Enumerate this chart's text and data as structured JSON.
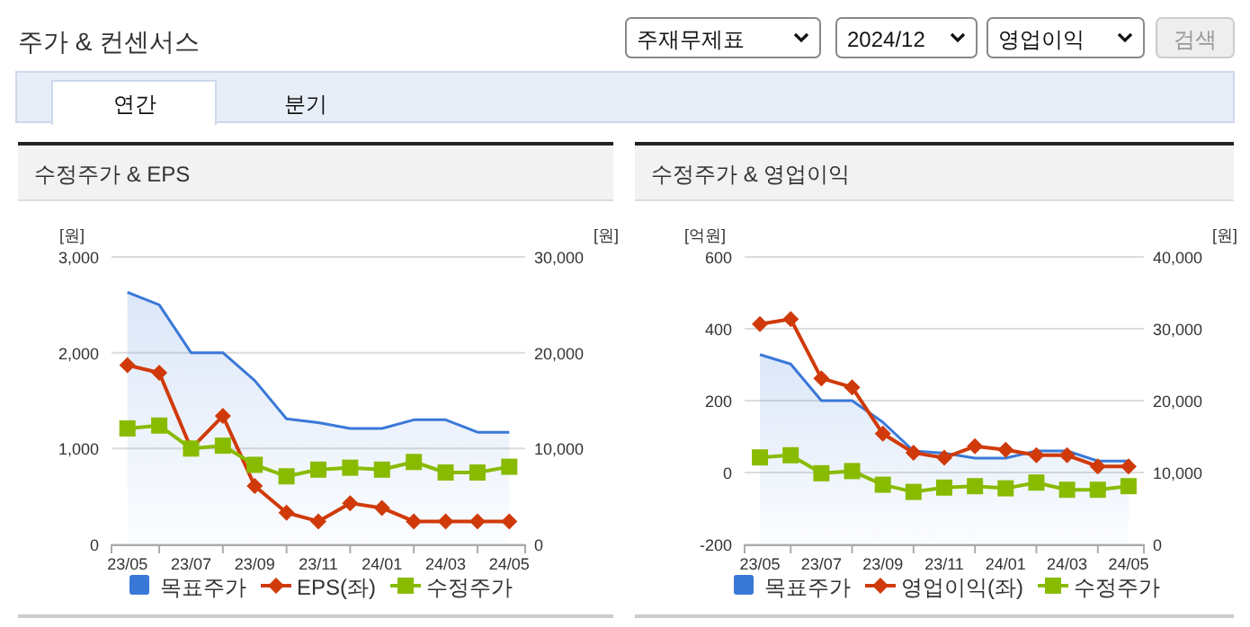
{
  "chart_data": [
    {
      "type": "line",
      "title": "수정주가 & EPS",
      "ylabel": "[원]",
      "y2label": "[원]",
      "annotations": [
        "주가 & 컨센서스",
        "주재무제표",
        "2024/12",
        "영업이익",
        "검색",
        "연간",
        "분기"
      ],
      "categories": [
        "23/05",
        null,
        "23/07",
        null,
        "23/09",
        null,
        "23/11",
        null,
        "24/01",
        null,
        "24/03",
        null,
        "24/05"
      ],
      "ylim": [
        0,
        3000
      ],
      "yticks": [
        0,
        {
          "value": 1000,
          "label": "1,000"
        },
        {
          "value": 2000,
          "label": "2,000"
        },
        {
          "value": 3000,
          "label": "3,000"
        }
      ],
      "y2lim": [
        0,
        30000
      ],
      "y2ticks": [
        0,
        {
          "value": 10000,
          "label": "10,000"
        },
        {
          "value": 20000,
          "label": "20,000"
        },
        {
          "value": 30000,
          "label": "30,000"
        }
      ],
      "grid": "y",
      "legend": "bottom",
      "series": [
        {
          "name": "목표주가",
          "type": "area",
          "axis": "y2",
          "color": "#3a78d8",
          "marker": "none",
          "values": [
            26300,
            25000,
            20000,
            20000,
            17100,
            13100,
            12700,
            12100,
            12100,
            13000,
            13000,
            11700,
            11700
          ]
        },
        {
          "name": "EPS(좌)",
          "axis": "y",
          "color": "#d03a0a",
          "marker": "diamond",
          "values": [
            1870,
            1790,
            1000,
            1340,
            610,
            330,
            240,
            430,
            380,
            240,
            240,
            240,
            240
          ]
        },
        {
          "name": "수정주가",
          "axis": "y2",
          "color": "#88bb00",
          "marker": "square",
          "values": [
            12100,
            12400,
            10000,
            10300,
            8300,
            7100,
            7800,
            8000,
            7800,
            8600,
            7500,
            7500,
            8100
          ]
        }
      ]
    },
    {
      "type": "line",
      "title": "수정주가 & 영업이익",
      "ylabel": "[억원]",
      "y2label": "[원]",
      "categories": [
        "23/05",
        null,
        "23/07",
        null,
        "23/09",
        null,
        "23/11",
        null,
        "24/01",
        null,
        "24/03",
        null,
        "24/05"
      ],
      "ylim": [
        -200,
        600
      ],
      "yticks": [
        -200,
        0,
        200,
        400,
        600
      ],
      "y2lim": [
        0,
        40000
      ],
      "y2ticks": [
        0,
        {
          "value": 10000,
          "label": "10,000"
        },
        {
          "value": 20000,
          "label": "20,000"
        },
        {
          "value": 30000,
          "label": "30,000"
        },
        {
          "value": 40000,
          "label": "40,000"
        }
      ],
      "grid": "y",
      "legend": "bottom",
      "series": [
        {
          "name": "목표주가",
          "type": "area",
          "axis": "y2",
          "color": "#3a78d8",
          "marker": "none",
          "values": [
            26400,
            25100,
            20000,
            20000,
            17000,
            13000,
            12700,
            12000,
            12000,
            13000,
            13000,
            11600,
            11600
          ]
        },
        {
          "name": "영업이익(좌)",
          "axis": "y",
          "color": "#d03a0a",
          "marker": "diamond",
          "values": [
            413,
            427,
            262,
            237,
            108,
            55,
            41,
            73,
            63,
            48,
            48,
            17,
            17
          ]
        },
        {
          "name": "수정주가",
          "axis": "y2",
          "color": "#88bb00",
          "marker": "square",
          "values": [
            12100,
            12400,
            9900,
            10200,
            8300,
            7300,
            7900,
            8100,
            7800,
            8600,
            7600,
            7600,
            8100
          ]
        }
      ]
    }
  ]
}
